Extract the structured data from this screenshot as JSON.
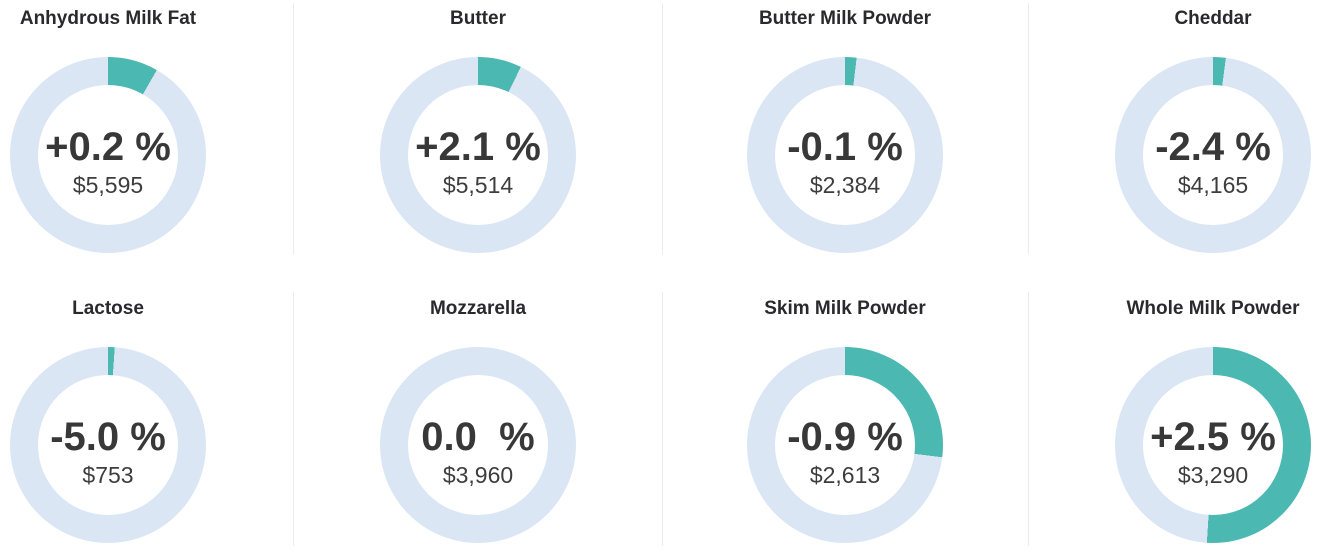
{
  "dashboard": {
    "description": "Dairy product price-change donut grid (2 rows x 4 columns)",
    "colors": {
      "arc_teal": "#4cb8b2",
      "track_blue": "#dbe6f5",
      "divider_gray": "#ececec",
      "title_text": "#2a2a2e",
      "value_text": "#383838"
    }
  },
  "chart_data": {
    "type": "donut-grid",
    "donut_style": "ring starts at 12 o'clock, teal arc clockwise over light-blue track, value text in center",
    "currency": "USD",
    "charts": [
      {
        "type": "donut",
        "title": "Anhydrous Milk Fat",
        "change_label": "+0.2 %",
        "change_pct": 0.2,
        "price_label": "$5,595",
        "price_usd": 5595,
        "ring_fraction": 0.083
      },
      {
        "type": "donut",
        "title": "Butter",
        "change_label": "+2.1 %",
        "change_pct": 2.1,
        "price_label": "$5,514",
        "price_usd": 5514,
        "ring_fraction": 0.072
      },
      {
        "type": "donut",
        "title": "Butter Milk Powder",
        "change_label": "-0.1 %",
        "change_pct": -0.1,
        "price_label": "$2,384",
        "price_usd": 2384,
        "ring_fraction": 0.019
      },
      {
        "type": "donut",
        "title": "Cheddar",
        "change_label": "-2.4 %",
        "change_pct": -2.4,
        "price_label": "$4,165",
        "price_usd": 4165,
        "ring_fraction": 0.021
      },
      {
        "type": "donut",
        "title": "Lactose",
        "change_label": "-5.0 %",
        "change_pct": -5.0,
        "price_label": "$753",
        "price_usd": 753,
        "ring_fraction": 0.011
      },
      {
        "type": "donut",
        "title": "Mozzarella",
        "change_label": "0.0  %",
        "change_pct": 0.0,
        "price_label": "$3,960",
        "price_usd": 3960,
        "ring_fraction": 0.0
      },
      {
        "type": "donut",
        "title": "Skim Milk Powder",
        "change_label": "-0.9 %",
        "change_pct": -0.9,
        "price_label": "$2,613",
        "price_usd": 2613,
        "ring_fraction": 0.27
      },
      {
        "type": "donut",
        "title": "Whole Milk Powder",
        "change_label": "+2.5 %",
        "change_pct": 2.5,
        "price_label": "$3,290",
        "price_usd": 3290,
        "ring_fraction": 0.51
      }
    ]
  }
}
